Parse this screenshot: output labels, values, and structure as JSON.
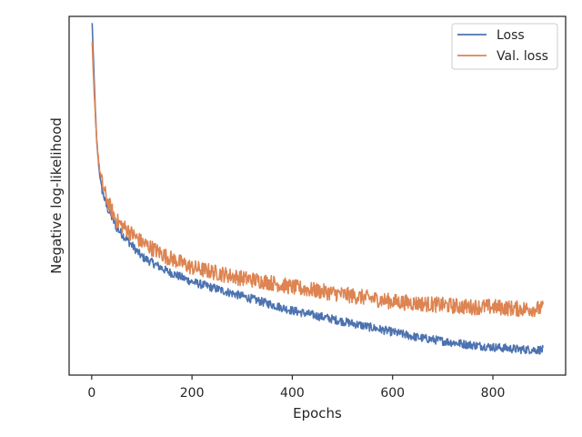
{
  "chart_data": {
    "type": "line",
    "title": "",
    "xlabel": "Epochs",
    "ylabel": "Negative log-likelihood",
    "xlim": [
      -45,
      945
    ],
    "ylim": [
      0,
      1
    ],
    "xticks": [
      0,
      200,
      400,
      600,
      800
    ],
    "yticks_visible": false,
    "grid": false,
    "legend": {
      "placement": "top-right",
      "entries": [
        "Loss",
        "Val. loss"
      ]
    },
    "series": [
      {
        "name": "Loss",
        "color": "#4c72b0",
        "x": [
          1,
          5,
          10,
          15,
          20,
          30,
          40,
          50,
          75,
          100,
          150,
          200,
          250,
          300,
          350,
          400,
          450,
          500,
          550,
          600,
          650,
          700,
          750,
          800,
          850,
          900
        ],
        "y": [
          0.98,
          0.82,
          0.65,
          0.57,
          0.52,
          0.47,
          0.44,
          0.41,
          0.37,
          0.33,
          0.29,
          0.26,
          0.24,
          0.22,
          0.2,
          0.18,
          0.165,
          0.15,
          0.135,
          0.12,
          0.105,
          0.095,
          0.085,
          0.078,
          0.072,
          0.07
        ],
        "noise": 0.012
      },
      {
        "name": "Val. loss",
        "color": "#dd8452",
        "x": [
          1,
          5,
          10,
          15,
          20,
          30,
          40,
          50,
          75,
          100,
          150,
          200,
          250,
          300,
          350,
          400,
          450,
          500,
          550,
          600,
          650,
          700,
          750,
          800,
          850,
          900
        ],
        "y": [
          0.92,
          0.78,
          0.66,
          0.58,
          0.54,
          0.49,
          0.46,
          0.43,
          0.4,
          0.37,
          0.33,
          0.3,
          0.285,
          0.27,
          0.26,
          0.245,
          0.235,
          0.225,
          0.215,
          0.205,
          0.2,
          0.195,
          0.19,
          0.19,
          0.185,
          0.185
        ],
        "noise": 0.022
      }
    ]
  }
}
